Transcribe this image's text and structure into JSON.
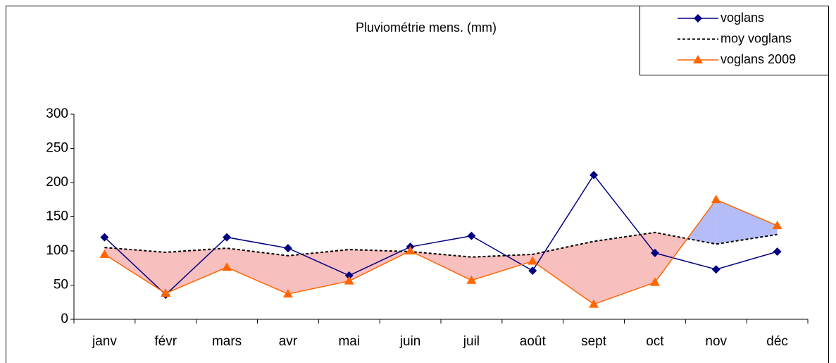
{
  "chart_data": {
    "type": "line",
    "title": "Pluviométrie mens. (mm)",
    "categories": [
      "janv",
      "févr",
      "mars",
      "avr",
      "mai",
      "juin",
      "juil",
      "août",
      "sept",
      "oct",
      "nov",
      "déc"
    ],
    "series": [
      {
        "name": "voglans",
        "color": "#000080",
        "marker": "diamond",
        "dash": false,
        "values": [
          120,
          36,
          120,
          104,
          64,
          106,
          122,
          71,
          211,
          97,
          73,
          99
        ]
      },
      {
        "name": "moy voglans",
        "color": "#000000",
        "marker": null,
        "dash": true,
        "values": [
          105,
          98,
          104,
          93,
          102,
          99,
          91,
          95,
          114,
          127,
          110,
          124
        ]
      },
      {
        "name": "voglans 2009",
        "color": "#ff6600",
        "marker": "triangle",
        "dash": false,
        "values": [
          95,
          38,
          76,
          37,
          56,
          100,
          57,
          85,
          22,
          54,
          175,
          137
        ]
      }
    ],
    "fill_between": {
      "below": "#f07070",
      "above": "#5a6cf0"
    },
    "ylim": [
      0,
      300
    ],
    "yticks": [
      0,
      50,
      100,
      150,
      200,
      250,
      300
    ],
    "legend": "top-right"
  }
}
